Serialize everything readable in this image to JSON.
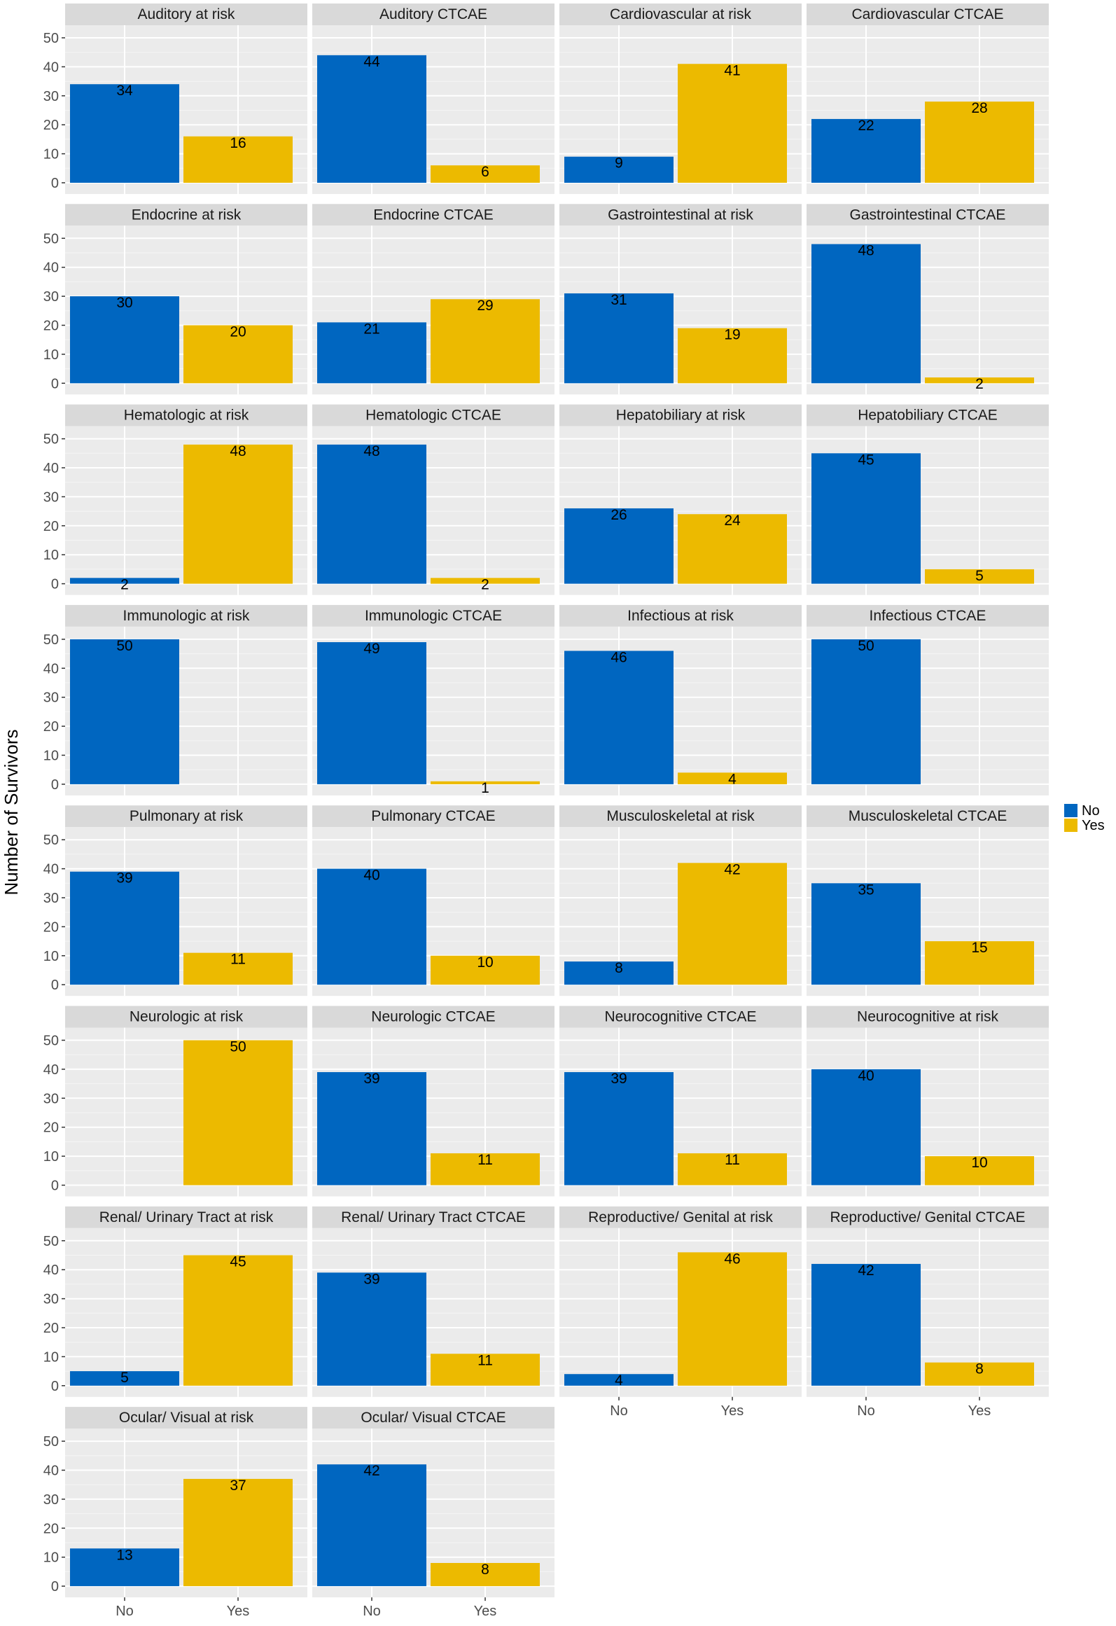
{
  "chart_data": {
    "type": "bar",
    "layout": "facet grid, 4 columns",
    "ylabel": "Number of Survivors",
    "xlabel": "",
    "categories": [
      "No",
      "Yes"
    ],
    "ylim": [
      0,
      52
    ],
    "yticks": [
      0,
      10,
      20,
      30,
      40,
      50
    ],
    "legend": {
      "position": "right",
      "items": [
        {
          "label": "No",
          "color": "#0066c0"
        },
        {
          "label": "Yes",
          "color": "#ecba00"
        }
      ]
    },
    "panels": [
      {
        "title": "Auditory at risk",
        "values": [
          34,
          16
        ]
      },
      {
        "title": "Auditory CTCAE",
        "values": [
          44,
          6
        ]
      },
      {
        "title": "Cardiovascular at risk",
        "values": [
          9,
          41
        ]
      },
      {
        "title": "Cardiovascular CTCAE",
        "values": [
          22,
          28
        ]
      },
      {
        "title": "Endocrine at risk",
        "values": [
          30,
          20
        ]
      },
      {
        "title": "Endocrine CTCAE",
        "values": [
          21,
          29
        ]
      },
      {
        "title": "Gastrointestinal at risk",
        "values": [
          31,
          19
        ]
      },
      {
        "title": "Gastrointestinal CTCAE",
        "values": [
          48,
          2
        ]
      },
      {
        "title": "Hematologic at risk",
        "values": [
          2,
          48
        ]
      },
      {
        "title": "Hematologic CTCAE",
        "values": [
          48,
          2
        ]
      },
      {
        "title": "Hepatobiliary at risk",
        "values": [
          26,
          24
        ]
      },
      {
        "title": "Hepatobiliary CTCAE",
        "values": [
          45,
          5
        ]
      },
      {
        "title": "Immunologic at risk",
        "values": [
          50,
          null
        ]
      },
      {
        "title": "Immunologic CTCAE",
        "values": [
          49,
          1
        ]
      },
      {
        "title": "Infectious at risk",
        "values": [
          46,
          4
        ]
      },
      {
        "title": "Infectious CTCAE",
        "values": [
          50,
          null
        ]
      },
      {
        "title": "Pulmonary at risk",
        "values": [
          39,
          11
        ]
      },
      {
        "title": "Pulmonary CTCAE",
        "values": [
          40,
          10
        ]
      },
      {
        "title": "Musculoskeletal at risk",
        "values": [
          8,
          42
        ]
      },
      {
        "title": "Musculoskeletal CTCAE",
        "values": [
          35,
          15
        ]
      },
      {
        "title": "Neurologic at risk",
        "values": [
          null,
          50
        ]
      },
      {
        "title": "Neurologic CTCAE",
        "values": [
          39,
          11
        ]
      },
      {
        "title": "Neurocognitive CTCAE",
        "values": [
          39,
          11
        ]
      },
      {
        "title": "Neurocognitive at risk",
        "values": [
          40,
          10
        ]
      },
      {
        "title": "Renal/ Urinary Tract at risk",
        "values": [
          5,
          45
        ]
      },
      {
        "title": "Renal/ Urinary Tract CTCAE",
        "values": [
          39,
          11
        ]
      },
      {
        "title": "Reproductive/ Genital at risk",
        "values": [
          4,
          46
        ]
      },
      {
        "title": "Reproductive/ Genital CTCAE",
        "values": [
          42,
          8
        ]
      },
      {
        "title": "Ocular/ Visual at risk",
        "values": [
          13,
          37
        ]
      },
      {
        "title": "Ocular/ Visual CTCAE",
        "values": [
          42,
          8
        ]
      }
    ]
  }
}
